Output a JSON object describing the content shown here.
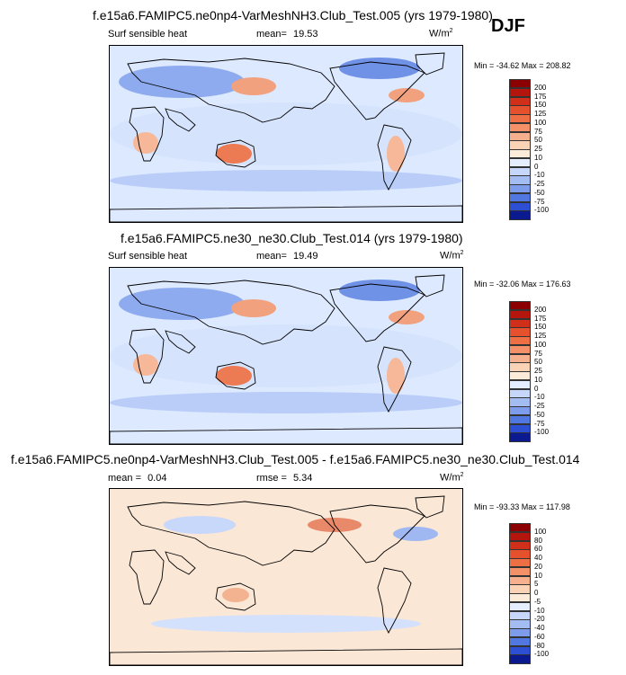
{
  "season": "DJF",
  "panels": [
    {
      "title": "f.e15a6.FAMIPC5.ne0np4-VarMeshNH3.Club_Test.005 (yrs 1979-1980)",
      "variable": "Surf sensible heat",
      "mean_label": "mean=",
      "mean_value": "19.53",
      "rmse_label": "",
      "rmse_value": "",
      "units": "W/m",
      "units_sup": "2",
      "minmax": "Min = -34.62 Max = 208.82"
    },
    {
      "title": "f.e15a6.FAMIPC5.ne30_ne30.Club_Test.014 (yrs 1979-1980)",
      "variable": "Surf sensible heat",
      "mean_label": "mean=",
      "mean_value": "19.49",
      "rmse_label": "",
      "rmse_value": "",
      "units": "W/m",
      "units_sup": "2",
      "minmax": "Min = -32.06 Max = 176.63"
    },
    {
      "title": "f.e15a6.FAMIPC5.ne0np4-VarMeshNH3.Club_Test.005 - f.e15a6.FAMIPC5.ne30_ne30.Club_Test.014",
      "variable": "",
      "mean_label": "mean =",
      "mean_value": "0.04",
      "rmse_label": "rmse =",
      "rmse_value": "5.34",
      "units": "W/m",
      "units_sup": "2",
      "minmax": "Min = -93.33 Max = 117.98"
    }
  ],
  "chart_data": [
    {
      "type": "heatmap",
      "title": "f.e15a6.FAMIPC5.ne0np4-VarMeshNH3.Club_Test.005 (yrs 1979-1980)",
      "variable": "Surf sensible heat",
      "units": "W/m2",
      "mean": 19.53,
      "min": -34.62,
      "max": 208.82,
      "colorbar_levels": [
        "200",
        "175",
        "150",
        "125",
        "100",
        "75",
        "50",
        "25",
        "10",
        "0",
        "-10",
        "-25",
        "-50",
        "-75",
        "-100"
      ],
      "colorbar_colors": [
        "#8b0000",
        "#b4150c",
        "#d0301a",
        "#e4512c",
        "#ef6f45",
        "#f49168",
        "#f7b08e",
        "#fad2b6",
        "#fcebd9",
        "#e4eeff",
        "#c6d7fb",
        "#a3bcf2",
        "#7d9ceb",
        "#5178e0",
        "#2c4fd4",
        "#0c1a8f"
      ]
    },
    {
      "type": "heatmap",
      "title": "f.e15a6.FAMIPC5.ne30_ne30.Club_Test.014 (yrs 1979-1980)",
      "variable": "Surf sensible heat",
      "units": "W/m2",
      "mean": 19.49,
      "min": -32.06,
      "max": 176.63,
      "colorbar_levels": [
        "200",
        "175",
        "150",
        "125",
        "100",
        "75",
        "50",
        "25",
        "10",
        "0",
        "-10",
        "-25",
        "-50",
        "-75",
        "-100"
      ],
      "colorbar_colors": [
        "#8b0000",
        "#b4150c",
        "#d0301a",
        "#e4512c",
        "#ef6f45",
        "#f49168",
        "#f7b08e",
        "#fad2b6",
        "#fcebd9",
        "#e4eeff",
        "#c6d7fb",
        "#a3bcf2",
        "#7d9ceb",
        "#5178e0",
        "#2c4fd4",
        "#0c1a8f"
      ]
    },
    {
      "type": "heatmap",
      "title": "f.e15a6.FAMIPC5.ne0np4-VarMeshNH3.Club_Test.005 - f.e15a6.FAMIPC5.ne30_ne30.Club_Test.014",
      "units": "W/m2",
      "mean": 0.04,
      "rmse": 5.34,
      "min": -93.33,
      "max": 117.98,
      "colorbar_levels": [
        "100",
        "80",
        "60",
        "40",
        "20",
        "10",
        "5",
        "0",
        "-5",
        "-10",
        "-20",
        "-40",
        "-60",
        "-80",
        "-100"
      ],
      "colorbar_colors": [
        "#8b0000",
        "#b4150c",
        "#d0301a",
        "#e4512c",
        "#ef6f45",
        "#f49168",
        "#f7b08e",
        "#fad2b6",
        "#fcebd9",
        "#e4eeff",
        "#c6d7fb",
        "#a3bcf2",
        "#7d9ceb",
        "#5178e0",
        "#2c4fd4",
        "#0c1a8f"
      ]
    }
  ],
  "icons": {
    "map_land": "continent-outline-shapes"
  }
}
